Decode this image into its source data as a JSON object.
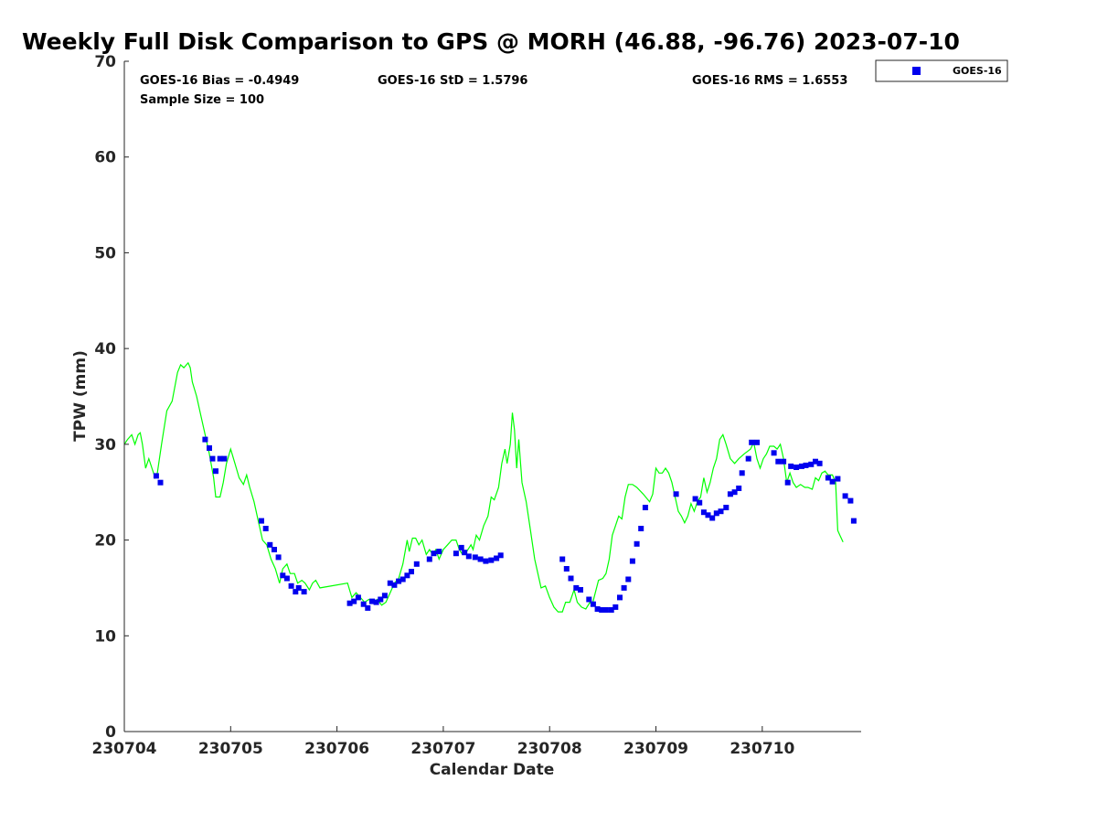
{
  "chart_data": {
    "type": "line+scatter",
    "title": "Weekly Full Disk Comparison to GPS @ MORH (46.88, -96.76) 2023-07-10",
    "xlabel": "Calendar Date",
    "ylabel": "TPW (mm)",
    "xlim": [
      230704,
      230710.93
    ],
    "ylim": [
      0,
      70
    ],
    "x_ticks": [
      "230704",
      "230705",
      "230706",
      "230707",
      "230708",
      "230709",
      "230710"
    ],
    "y_ticks": [
      "0",
      "10",
      "20",
      "30",
      "40",
      "50",
      "60",
      "70"
    ],
    "grid": false,
    "legend": {
      "placement": "outside-top-right",
      "entries": [
        "GOES-16"
      ]
    },
    "stats": {
      "bias": "GOES-16 Bias = -0.4949",
      "std": "GOES-16 StD = 1.5796",
      "rms": "GOES-16 RMS = 1.6553",
      "sample": "Sample Size = 100"
    },
    "series": [
      {
        "name": "GPS",
        "kind": "line",
        "color": "#00ff00",
        "points": [
          [
            0.0,
            30.0
          ],
          [
            0.03,
            30.5
          ],
          [
            0.07,
            31.0
          ],
          [
            0.1,
            30.0
          ],
          [
            0.13,
            31.0
          ],
          [
            0.15,
            31.2
          ],
          [
            0.17,
            30.0
          ],
          [
            0.2,
            27.5
          ],
          [
            0.23,
            28.5
          ],
          [
            0.26,
            27.5
          ],
          [
            0.29,
            26.5
          ],
          [
            0.31,
            27.0
          ],
          [
            0.35,
            30.0
          ],
          [
            0.4,
            33.5
          ],
          [
            0.45,
            34.5
          ],
          [
            0.5,
            37.5
          ],
          [
            0.53,
            38.3
          ],
          [
            0.56,
            38.0
          ],
          [
            0.6,
            38.5
          ],
          [
            0.62,
            38.0
          ],
          [
            0.64,
            36.5
          ],
          [
            0.68,
            35.0
          ],
          [
            0.72,
            33.0
          ],
          [
            0.76,
            31.0
          ],
          [
            0.8,
            29.0
          ],
          [
            0.84,
            26.5
          ],
          [
            0.86,
            24.5
          ],
          [
            0.9,
            24.5
          ],
          [
            0.93,
            26.0
          ],
          [
            0.96,
            28.0
          ],
          [
            1.0,
            29.5
          ],
          [
            1.04,
            28.0
          ],
          [
            1.08,
            26.5
          ],
          [
            1.12,
            25.8
          ],
          [
            1.15,
            26.8
          ],
          [
            1.18,
            25.5
          ],
          [
            1.22,
            24.0
          ],
          [
            1.26,
            22.0
          ],
          [
            1.3,
            20.0
          ],
          [
            1.34,
            19.5
          ],
          [
            1.38,
            18.0
          ],
          [
            1.42,
            17.0
          ],
          [
            1.46,
            15.5
          ],
          [
            1.49,
            17.0
          ],
          [
            1.53,
            17.5
          ],
          [
            1.56,
            16.5
          ],
          [
            1.6,
            16.5
          ],
          [
            1.63,
            15.5
          ],
          [
            1.67,
            15.8
          ],
          [
            1.7,
            15.5
          ],
          [
            1.74,
            14.8
          ],
          [
            1.77,
            15.5
          ],
          [
            1.8,
            15.8
          ],
          [
            1.84,
            15.0
          ],
          [
            2.1,
            15.5
          ],
          [
            2.14,
            14.0
          ],
          [
            2.18,
            14.5
          ],
          [
            2.22,
            14.0
          ],
          [
            2.26,
            13.5
          ],
          [
            2.3,
            13.8
          ],
          [
            2.34,
            13.5
          ],
          [
            2.38,
            13.8
          ],
          [
            2.42,
            13.2
          ],
          [
            2.46,
            13.5
          ],
          [
            2.5,
            14.5
          ],
          [
            2.54,
            15.5
          ],
          [
            2.58,
            16.0
          ],
          [
            2.62,
            17.5
          ],
          [
            2.66,
            20.0
          ],
          [
            2.68,
            18.8
          ],
          [
            2.71,
            20.2
          ],
          [
            2.74,
            20.2
          ],
          [
            2.77,
            19.5
          ],
          [
            2.8,
            20.0
          ],
          [
            2.84,
            18.5
          ],
          [
            2.87,
            19.0
          ],
          [
            2.9,
            18.5
          ],
          [
            2.93,
            19.0
          ],
          [
            2.96,
            18.0
          ],
          [
            3.0,
            19.0
          ],
          [
            3.04,
            19.5
          ],
          [
            3.08,
            20.0
          ],
          [
            3.12,
            20.0
          ],
          [
            3.15,
            19.0
          ],
          [
            3.18,
            18.5
          ],
          [
            3.22,
            18.8
          ],
          [
            3.26,
            19.5
          ],
          [
            3.28,
            19.0
          ],
          [
            3.31,
            20.5
          ],
          [
            3.34,
            20.0
          ],
          [
            3.38,
            21.5
          ],
          [
            3.42,
            22.5
          ],
          [
            3.45,
            24.5
          ],
          [
            3.48,
            24.2
          ],
          [
            3.52,
            25.5
          ],
          [
            3.55,
            28.0
          ],
          [
            3.58,
            29.5
          ],
          [
            3.6,
            28.0
          ],
          [
            3.63,
            30.0
          ],
          [
            3.65,
            33.3
          ],
          [
            3.67,
            31.5
          ],
          [
            3.69,
            27.5
          ],
          [
            3.71,
            30.5
          ],
          [
            3.74,
            26.0
          ],
          [
            3.78,
            24.0
          ],
          [
            3.82,
            21.0
          ],
          [
            3.86,
            18.0
          ],
          [
            3.89,
            16.5
          ],
          [
            3.92,
            15.0
          ],
          [
            3.96,
            15.2
          ],
          [
            4.0,
            14.0
          ],
          [
            4.04,
            13.0
          ],
          [
            4.08,
            12.5
          ],
          [
            4.12,
            12.5
          ],
          [
            4.15,
            13.5
          ],
          [
            4.19,
            13.5
          ],
          [
            4.23,
            14.8
          ],
          [
            4.26,
            13.5
          ],
          [
            4.3,
            13.0
          ],
          [
            4.34,
            12.8
          ],
          [
            4.38,
            13.5
          ],
          [
            4.4,
            13.2
          ],
          [
            4.43,
            14.5
          ],
          [
            4.46,
            15.8
          ],
          [
            4.5,
            16.0
          ],
          [
            4.53,
            16.5
          ],
          [
            4.56,
            18.0
          ],
          [
            4.59,
            20.5
          ],
          [
            4.62,
            21.5
          ],
          [
            4.65,
            22.5
          ],
          [
            4.68,
            22.2
          ],
          [
            4.71,
            24.5
          ],
          [
            4.74,
            25.8
          ],
          [
            4.78,
            25.8
          ],
          [
            4.82,
            25.5
          ],
          [
            4.88,
            24.8
          ],
          [
            4.94,
            24.0
          ],
          [
            4.97,
            24.8
          ],
          [
            5.0,
            27.5
          ],
          [
            5.03,
            27.0
          ],
          [
            5.06,
            27.0
          ],
          [
            5.09,
            27.5
          ],
          [
            5.12,
            27.0
          ],
          [
            5.15,
            26.0
          ],
          [
            5.18,
            24.5
          ],
          [
            5.21,
            23.0
          ],
          [
            5.24,
            22.5
          ],
          [
            5.27,
            21.8
          ],
          [
            5.3,
            22.5
          ],
          [
            5.33,
            23.8
          ],
          [
            5.36,
            23.0
          ],
          [
            5.39,
            24.0
          ],
          [
            5.42,
            24.5
          ],
          [
            5.45,
            26.5
          ],
          [
            5.48,
            25.0
          ],
          [
            5.51,
            26.0
          ],
          [
            5.54,
            27.5
          ],
          [
            5.57,
            28.5
          ],
          [
            5.6,
            30.5
          ],
          [
            5.63,
            31.0
          ],
          [
            5.66,
            30.0
          ],
          [
            5.7,
            28.5
          ],
          [
            5.74,
            28.0
          ],
          [
            5.78,
            28.5
          ],
          [
            5.83,
            29.0
          ],
          [
            5.89,
            29.5
          ],
          [
            5.92,
            30.2
          ],
          [
            5.95,
            28.5
          ],
          [
            5.98,
            27.5
          ],
          [
            6.01,
            28.5
          ],
          [
            6.04,
            29.0
          ],
          [
            6.07,
            29.8
          ],
          [
            6.11,
            29.8
          ],
          [
            6.14,
            29.5
          ],
          [
            6.17,
            30.0
          ],
          [
            6.2,
            28.5
          ],
          [
            6.23,
            26.0
          ],
          [
            6.26,
            27.0
          ],
          [
            6.29,
            26.0
          ],
          [
            6.32,
            25.5
          ],
          [
            6.36,
            25.8
          ],
          [
            6.4,
            25.5
          ],
          [
            6.43,
            25.5
          ],
          [
            6.47,
            25.3
          ],
          [
            6.5,
            26.5
          ],
          [
            6.53,
            26.2
          ],
          [
            6.56,
            27.0
          ],
          [
            6.59,
            27.2
          ],
          [
            6.62,
            26.8
          ],
          [
            6.66,
            26.8
          ],
          [
            6.69,
            26.0
          ],
          [
            6.71,
            21.0
          ],
          [
            6.73,
            20.5
          ],
          [
            6.76,
            19.8
          ]
        ]
      },
      {
        "name": "GOES-16",
        "kind": "scatter",
        "color": "#0000ee",
        "points": [
          [
            0.3,
            26.7
          ],
          [
            0.34,
            26.0
          ],
          [
            0.76,
            30.5
          ],
          [
            0.8,
            29.6
          ],
          [
            0.83,
            28.5
          ],
          [
            0.86,
            27.2
          ],
          [
            0.9,
            28.5
          ],
          [
            0.94,
            28.5
          ],
          [
            1.29,
            22.0
          ],
          [
            1.33,
            21.2
          ],
          [
            1.37,
            19.5
          ],
          [
            1.41,
            19.0
          ],
          [
            1.45,
            18.2
          ],
          [
            1.49,
            16.3
          ],
          [
            1.53,
            16.0
          ],
          [
            1.57,
            15.2
          ],
          [
            1.61,
            14.6
          ],
          [
            1.64,
            15.0
          ],
          [
            1.69,
            14.6
          ],
          [
            2.12,
            13.4
          ],
          [
            2.16,
            13.6
          ],
          [
            2.2,
            14.0
          ],
          [
            2.25,
            13.3
          ],
          [
            2.29,
            12.9
          ],
          [
            2.33,
            13.6
          ],
          [
            2.37,
            13.5
          ],
          [
            2.41,
            13.8
          ],
          [
            2.45,
            14.2
          ],
          [
            2.5,
            15.5
          ],
          [
            2.54,
            15.3
          ],
          [
            2.58,
            15.7
          ],
          [
            2.62,
            15.9
          ],
          [
            2.66,
            16.3
          ],
          [
            2.7,
            16.7
          ],
          [
            2.75,
            17.5
          ],
          [
            2.87,
            18.0
          ],
          [
            2.91,
            18.6
          ],
          [
            2.96,
            18.8
          ],
          [
            3.12,
            18.6
          ],
          [
            3.17,
            19.2
          ],
          [
            3.2,
            18.7
          ],
          [
            3.24,
            18.3
          ],
          [
            3.3,
            18.2
          ],
          [
            3.35,
            18.0
          ],
          [
            3.4,
            17.8
          ],
          [
            3.45,
            17.9
          ],
          [
            3.5,
            18.1
          ],
          [
            3.54,
            18.4
          ],
          [
            4.12,
            18.0
          ],
          [
            4.16,
            17.0
          ],
          [
            4.2,
            16.0
          ],
          [
            4.25,
            15.0
          ],
          [
            4.29,
            14.8
          ],
          [
            4.37,
            13.8
          ],
          [
            4.41,
            13.3
          ],
          [
            4.45,
            12.8
          ],
          [
            4.49,
            12.7
          ],
          [
            4.53,
            12.7
          ],
          [
            4.58,
            12.7
          ],
          [
            4.62,
            13.0
          ],
          [
            4.66,
            14.0
          ],
          [
            4.7,
            15.0
          ],
          [
            4.74,
            15.9
          ],
          [
            4.78,
            17.8
          ],
          [
            4.82,
            19.6
          ],
          [
            4.86,
            21.2
          ],
          [
            4.9,
            23.4
          ],
          [
            5.19,
            24.8
          ],
          [
            5.37,
            24.3
          ],
          [
            5.41,
            23.9
          ],
          [
            5.45,
            22.9
          ],
          [
            5.49,
            22.6
          ],
          [
            5.53,
            22.3
          ],
          [
            5.57,
            22.8
          ],
          [
            5.61,
            23.0
          ],
          [
            5.66,
            23.4
          ],
          [
            5.7,
            24.8
          ],
          [
            5.74,
            25.0
          ],
          [
            5.78,
            25.4
          ],
          [
            5.81,
            27.0
          ],
          [
            5.87,
            28.5
          ],
          [
            5.9,
            30.2
          ],
          [
            5.95,
            30.2
          ],
          [
            6.11,
            29.1
          ],
          [
            6.15,
            28.2
          ],
          [
            6.2,
            28.2
          ],
          [
            6.24,
            26.0
          ],
          [
            6.27,
            27.7
          ],
          [
            6.32,
            27.6
          ],
          [
            6.37,
            27.7
          ],
          [
            6.41,
            27.8
          ],
          [
            6.46,
            27.9
          ],
          [
            6.5,
            28.2
          ],
          [
            6.54,
            28.0
          ],
          [
            6.62,
            26.5
          ],
          [
            6.66,
            26.1
          ],
          [
            6.71,
            26.4
          ],
          [
            6.78,
            24.6
          ],
          [
            6.83,
            24.1
          ],
          [
            6.86,
            22.0
          ]
        ]
      }
    ]
  }
}
